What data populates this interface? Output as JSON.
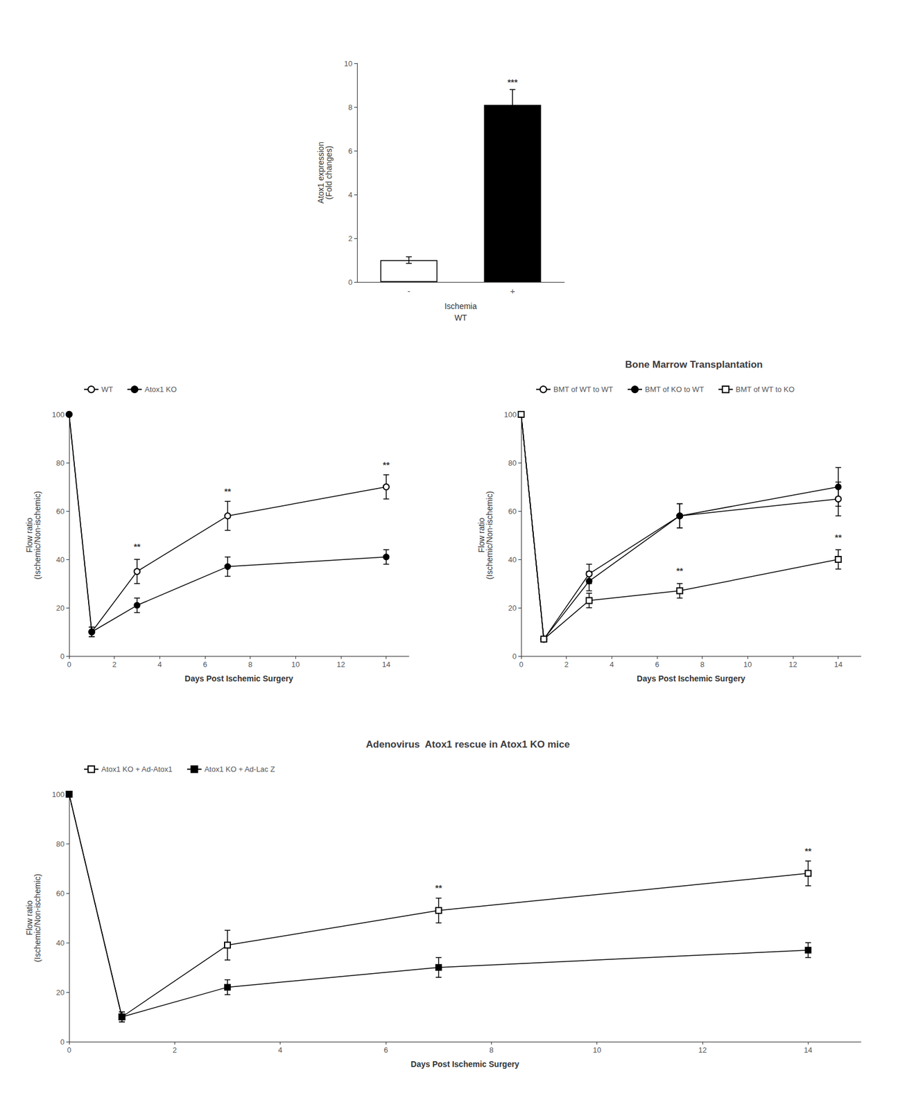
{
  "chart_data": [
    {
      "type": "bar",
      "categories": [
        "-",
        "+"
      ],
      "values": [
        1.0,
        8.1
      ],
      "errors": [
        0.15,
        0.7
      ],
      "colors": [
        "white",
        "black"
      ],
      "xlabel": "Ischemia\nWT",
      "ylabel": "Atox1 expression\n(Fold changes)",
      "ylim": [
        0,
        10
      ],
      "yticks": [
        0,
        2,
        4,
        6,
        8,
        10
      ],
      "grid": false,
      "annotations": [
        {
          "x": "+",
          "y": 8.9,
          "text": "***"
        }
      ]
    },
    {
      "type": "line",
      "xlabel": "Days Post Ischemic Surgery",
      "ylabel": "Flow ratio\n(Ischemic/Non-ischemic)",
      "xlim": [
        0,
        15
      ],
      "ylim": [
        0,
        100
      ],
      "xticks": [
        0,
        2,
        4,
        6,
        8,
        10,
        12,
        14
      ],
      "yticks": [
        0,
        20,
        40,
        60,
        80,
        100
      ],
      "grid": false,
      "legend": "top",
      "series": [
        {
          "name": "WT",
          "x": [
            0,
            1,
            3,
            7,
            14
          ],
          "values": [
            100,
            10,
            35,
            58,
            70
          ],
          "errors": [
            0,
            2,
            5,
            6,
            5
          ],
          "color": "black",
          "marker": "open_circle",
          "line_style": "solid"
        },
        {
          "name": "Atox1 KO",
          "x": [
            0,
            1,
            3,
            7,
            14
          ],
          "values": [
            100,
            10,
            21,
            37,
            41
          ],
          "errors": [
            0,
            2,
            3,
            4,
            3
          ],
          "color": "black",
          "marker": "filled_circle",
          "line_style": "solid"
        }
      ],
      "annotations": [
        {
          "x": 3,
          "y": 43,
          "text": "**"
        },
        {
          "x": 7,
          "y": 66,
          "text": "**"
        },
        {
          "x": 14,
          "y": 77,
          "text": "**"
        }
      ]
    },
    {
      "type": "line",
      "title": "Bone Marrow Transplantation",
      "xlabel": "Days Post Ischemic Surgery",
      "ylabel": "Flow ratio\n(Ischemic/Non-ischemic)",
      "xlim": [
        0,
        15
      ],
      "ylim": [
        0,
        100
      ],
      "xticks": [
        0,
        2,
        4,
        6,
        8,
        10,
        12,
        14
      ],
      "yticks": [
        0,
        20,
        40,
        60,
        80,
        100
      ],
      "grid": false,
      "legend": "top",
      "series": [
        {
          "name": "BMT of WT to WT",
          "x": [
            0,
            1,
            3,
            7,
            14
          ],
          "values": [
            100,
            7,
            34,
            58,
            65
          ],
          "errors": [
            0,
            1,
            4,
            5,
            7
          ],
          "color": "black",
          "marker": "open_circle",
          "line_style": "solid"
        },
        {
          "name": "BMT of KO to WT",
          "x": [
            0,
            1,
            3,
            7,
            14
          ],
          "values": [
            100,
            7,
            31,
            58,
            70
          ],
          "errors": [
            0,
            1,
            4,
            5,
            8
          ],
          "color": "black",
          "marker": "filled_circle",
          "line_style": "solid"
        },
        {
          "name": "BMT of WT to KO",
          "x": [
            0,
            1,
            3,
            7,
            14
          ],
          "values": [
            100,
            7,
            23,
            27,
            40
          ],
          "errors": [
            0,
            1,
            3,
            3,
            4
          ],
          "color": "black",
          "marker": "open_square",
          "line_style": "solid"
        }
      ],
      "annotations": [
        {
          "x": 7,
          "y": 33,
          "text": "**"
        },
        {
          "x": 14,
          "y": 47,
          "text": "**"
        }
      ]
    },
    {
      "type": "line",
      "title": "Adenovirus  Atox1 rescue in Atox1 KO mice",
      "xlabel": "Days Post Ischemic Surgery",
      "ylabel": "Flow ratio\n(Ischemic/Non-ischemic)",
      "xlim": [
        0,
        15
      ],
      "ylim": [
        0,
        100
      ],
      "xticks": [
        0,
        2,
        4,
        6,
        8,
        10,
        12,
        14
      ],
      "yticks": [
        0,
        20,
        40,
        60,
        80,
        100
      ],
      "grid": false,
      "legend": "top",
      "series": [
        {
          "name": "Atox1 KO + Ad-Atox1",
          "x": [
            0,
            1,
            3,
            7,
            14
          ],
          "values": [
            100,
            10,
            39,
            53,
            68
          ],
          "errors": [
            0,
            2,
            6,
            5,
            5
          ],
          "color": "black",
          "marker": "open_square",
          "line_style": "solid"
        },
        {
          "name": "Atox1 KO + Ad-Lac Z",
          "x": [
            0,
            1,
            3,
            7,
            14
          ],
          "values": [
            100,
            10,
            22,
            30,
            37
          ],
          "errors": [
            0,
            2,
            3,
            4,
            3
          ],
          "color": "black",
          "marker": "filled_square",
          "line_style": "solid"
        }
      ],
      "annotations": [
        {
          "x": 7,
          "y": 60,
          "text": "**"
        },
        {
          "x": 14,
          "y": 75,
          "text": "**"
        }
      ]
    }
  ]
}
